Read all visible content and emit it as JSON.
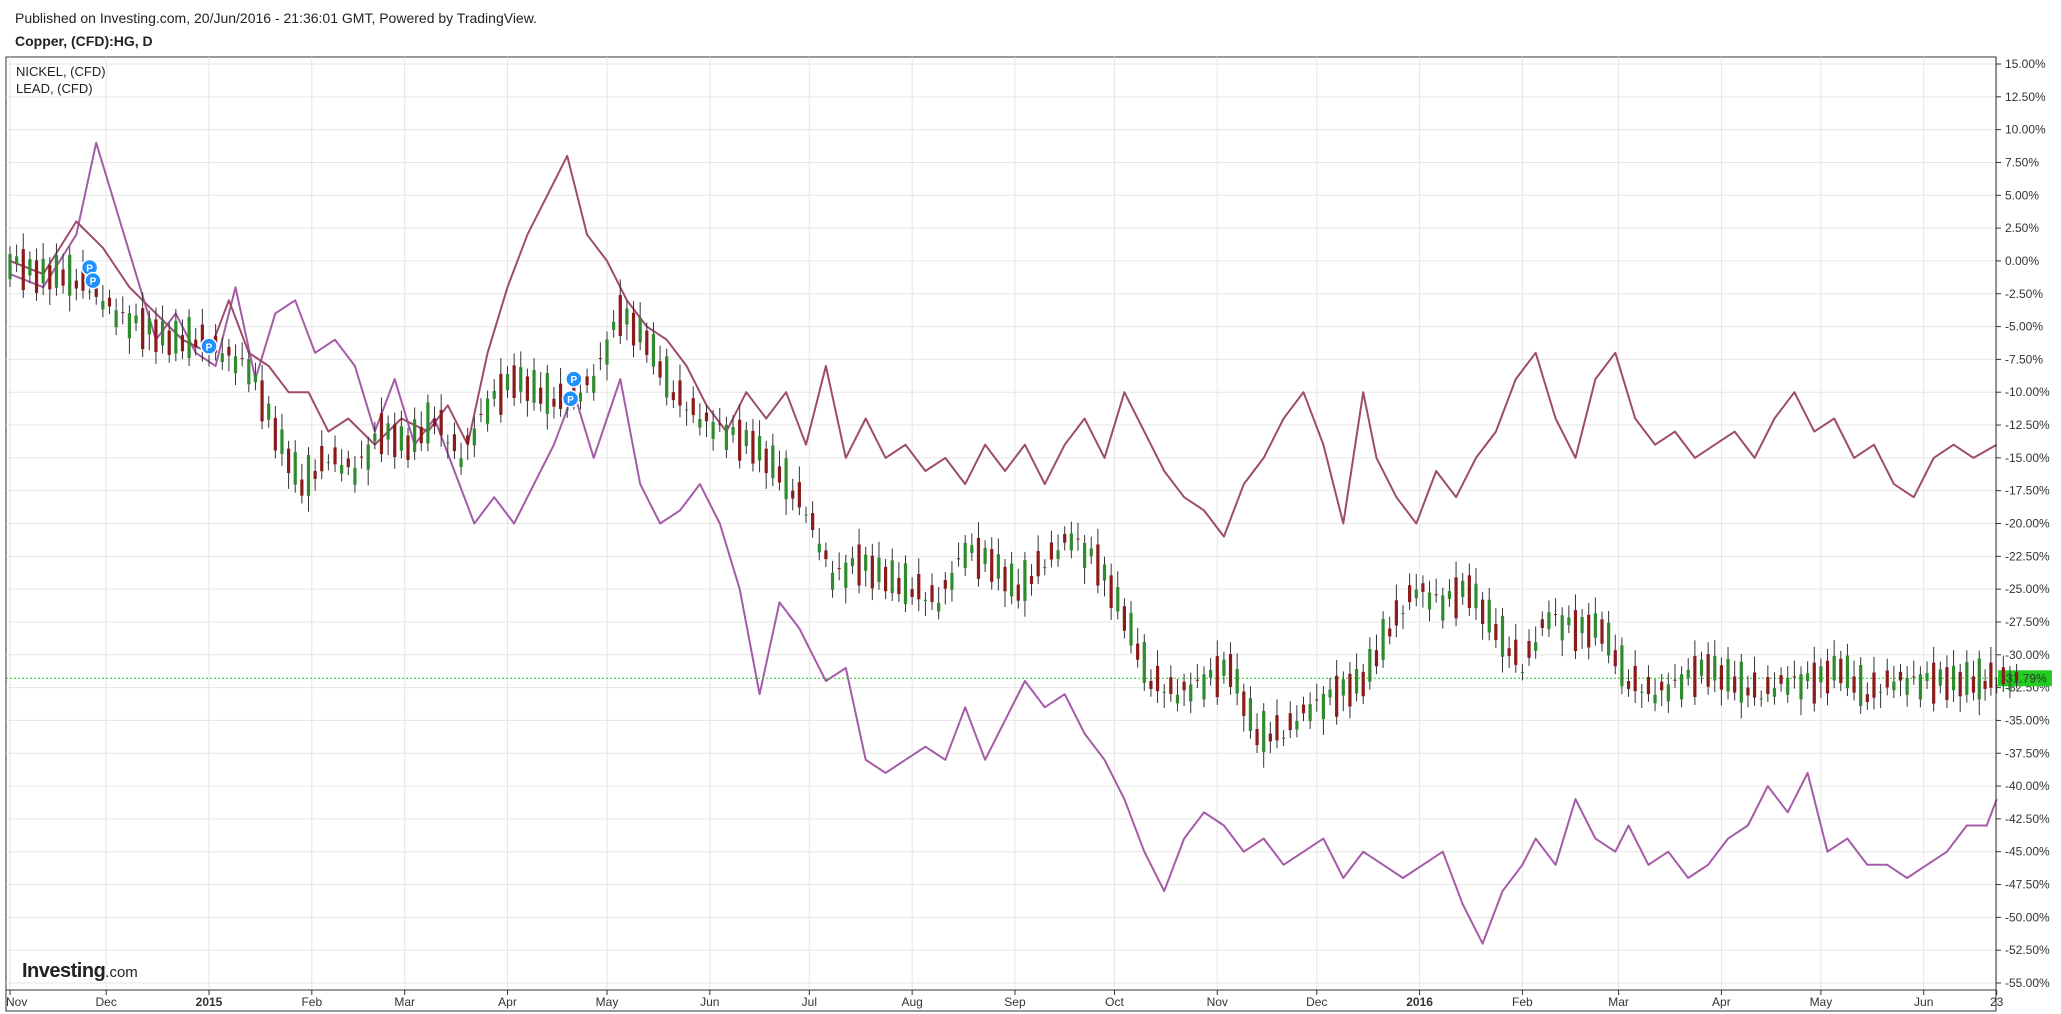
{
  "header": {
    "published": "Published on Investing.com, 20/Jun/2016 - 21:36:01 GMT, Powered by TradingView.",
    "symbol": "Copper, (CFD):HG, D"
  },
  "legend": [
    "NICKEL,  (CFD)",
    "LEAD,  (CFD)"
  ],
  "logo": {
    "brand": "Investing",
    "suffix": ".com"
  },
  "colors": {
    "nickel": "#a45ba8",
    "lead": "#9d4b6e",
    "up": "#2e8b2e",
    "down": "#8b1a1a",
    "last_line": "#22cc22",
    "last_badge": "#22cc22",
    "marker": "#1e90ff",
    "grid": "#e6e6e6"
  },
  "chart_data": {
    "type": "line",
    "y_unit": "percent",
    "ylim": [
      -55,
      15
    ],
    "y_ticks": [
      "15.00%",
      "12.50%",
      "10.00%",
      "7.50%",
      "5.00%",
      "2.50%",
      "0.00%",
      "-2.50%",
      "-5.00%",
      "-7.50%",
      "-10.00%",
      "-12.50%",
      "-15.00%",
      "-17.50%",
      "-20.00%",
      "-22.50%",
      "-25.00%",
      "-27.50%",
      "-30.00%",
      "-32.50%",
      "-35.00%",
      "-37.50%",
      "-40.00%",
      "-42.50%",
      "-45.00%",
      "-47.50%",
      "-50.00%",
      "-52.50%",
      "-55.00%"
    ],
    "x_ticks": [
      {
        "label": "Nov",
        "t": 0,
        "bold": false
      },
      {
        "label": "Dec",
        "t": 29,
        "bold": false
      },
      {
        "label": "2015",
        "t": 60,
        "bold": true
      },
      {
        "label": "Feb",
        "t": 91,
        "bold": false
      },
      {
        "label": "Mar",
        "t": 119,
        "bold": false
      },
      {
        "label": "Apr",
        "t": 150,
        "bold": false
      },
      {
        "label": "May",
        "t": 180,
        "bold": false
      },
      {
        "label": "Jun",
        "t": 211,
        "bold": false
      },
      {
        "label": "Jul",
        "t": 241,
        "bold": false
      },
      {
        "label": "Aug",
        "t": 272,
        "bold": false
      },
      {
        "label": "Sep",
        "t": 303,
        "bold": false
      },
      {
        "label": "Oct",
        "t": 333,
        "bold": false
      },
      {
        "label": "Nov",
        "t": 364,
        "bold": false
      },
      {
        "label": "Dec",
        "t": 394,
        "bold": false
      },
      {
        "label": "2016",
        "t": 425,
        "bold": true
      },
      {
        "label": "Feb",
        "t": 456,
        "bold": false
      },
      {
        "label": "Mar",
        "t": 485,
        "bold": false
      },
      {
        "label": "Apr",
        "t": 516,
        "bold": false
      },
      {
        "label": "May",
        "t": 546,
        "bold": false
      },
      {
        "label": "Jun",
        "t": 577,
        "bold": false
      },
      {
        "label": "23",
        "t": 599,
        "bold": false
      }
    ],
    "last_value": -31.79,
    "last_label": "-31.79%",
    "series": [
      {
        "name": "NICKEL,  (CFD)",
        "t": [
          0,
          10,
          20,
          26,
          32,
          38,
          44,
          50,
          56,
          62,
          68,
          74,
          80,
          86,
          92,
          98,
          104,
          110,
          116,
          122,
          128,
          134,
          140,
          146,
          152,
          158,
          164,
          170,
          176,
          180,
          184,
          190,
          196,
          202,
          208,
          214,
          220,
          226,
          232,
          238,
          242,
          246,
          252,
          258,
          264,
          270,
          276,
          282,
          288,
          294,
          300,
          306,
          312,
          318,
          324,
          330,
          336,
          342,
          348,
          354,
          360,
          366,
          372,
          378,
          384,
          390,
          396,
          402,
          408,
          414,
          420,
          426,
          432,
          438,
          444,
          450,
          456,
          460,
          466,
          472,
          478,
          484,
          488,
          494,
          500,
          506,
          512,
          518,
          524,
          530,
          536,
          542,
          548,
          554,
          560,
          566,
          572,
          578,
          584,
          590,
          596,
          599
        ],
        "values": [
          -1,
          -2,
          2,
          9,
          4,
          -1,
          -6,
          -4,
          -7,
          -8,
          -2,
          -9,
          -4,
          -3,
          -7,
          -6,
          -8,
          -13,
          -9,
          -14,
          -12,
          -16,
          -20,
          -18,
          -20,
          -17,
          -14,
          -10,
          -15,
          -12,
          -9,
          -17,
          -20,
          -19,
          -17,
          -20,
          -25,
          -33,
          -26,
          -28,
          -30,
          -32,
          -31,
          -38,
          -39,
          -38,
          -37,
          -38,
          -34,
          -38,
          -35,
          -32,
          -34,
          -33,
          -36,
          -38,
          -41,
          -45,
          -48,
          -44,
          -42,
          -43,
          -45,
          -44,
          -46,
          -45,
          -44,
          -47,
          -45,
          -46,
          -47,
          -46,
          -45,
          -49,
          -52,
          -48,
          -46,
          -44,
          -46,
          -41,
          -44,
          -45,
          -43,
          -46,
          -45,
          -47,
          -46,
          -44,
          -43,
          -40,
          -42,
          -39,
          -45,
          -44,
          -46,
          -46,
          -47,
          -46,
          -45,
          -43,
          -43,
          -41
        ]
      },
      {
        "name": "LEAD,  (CFD)",
        "t": [
          0,
          10,
          20,
          28,
          36,
          44,
          52,
          60,
          66,
          72,
          78,
          84,
          90,
          96,
          102,
          110,
          118,
          126,
          132,
          138,
          144,
          150,
          156,
          162,
          168,
          174,
          180,
          186,
          192,
          198,
          204,
          210,
          216,
          222,
          228,
          234,
          240,
          246,
          252,
          258,
          264,
          270,
          276,
          282,
          288,
          294,
          300,
          306,
          312,
          318,
          324,
          330,
          336,
          342,
          348,
          354,
          360,
          366,
          372,
          378,
          384,
          390,
          396,
          402,
          408,
          412,
          418,
          424,
          430,
          436,
          442,
          448,
          454,
          460,
          466,
          472,
          478,
          484,
          490,
          496,
          502,
          508,
          514,
          520,
          526,
          532,
          538,
          544,
          550,
          556,
          562,
          568,
          574,
          580,
          586,
          592,
          599
        ],
        "values": [
          0,
          -1,
          3,
          1,
          -2,
          -4,
          -6,
          -7,
          -3,
          -7,
          -8,
          -10,
          -10,
          -13,
          -12,
          -14,
          -12,
          -13,
          -11,
          -14,
          -7,
          -2,
          2,
          5,
          8,
          2,
          0,
          -3,
          -5,
          -6,
          -8,
          -11,
          -13,
          -10,
          -12,
          -10,
          -14,
          -8,
          -15,
          -12,
          -15,
          -14,
          -16,
          -15,
          -17,
          -14,
          -16,
          -14,
          -17,
          -14,
          -12,
          -15,
          -10,
          -13,
          -16,
          -18,
          -19,
          -21,
          -17,
          -15,
          -12,
          -10,
          -14,
          -20,
          -10,
          -15,
          -18,
          -20,
          -16,
          -18,
          -15,
          -13,
          -9,
          -7,
          -12,
          -15,
          -9,
          -7,
          -12,
          -14,
          -13,
          -15,
          -14,
          -13,
          -15,
          -12,
          -10,
          -13,
          -12,
          -15,
          -14,
          -17,
          -18,
          -15,
          -14,
          -15,
          -14
        ]
      },
      {
        "name": "Copper, (CFD):HG, D",
        "kind": "candlestick",
        "t": [
          0,
          8,
          16,
          24,
          32,
          40,
          48,
          56,
          64,
          72,
          80,
          88,
          96,
          104,
          112,
          120,
          128,
          136,
          144,
          152,
          160,
          168,
          176,
          184,
          192,
          200,
          208,
          216,
          224,
          232,
          240,
          248,
          256,
          264,
          272,
          280,
          288,
          296,
          304,
          312,
          320,
          328,
          336,
          344,
          352,
          360,
          368,
          376,
          384,
          392,
          400,
          408,
          416,
          424,
          432,
          440,
          448,
          456,
          464,
          472,
          480,
          488,
          496,
          504,
          512,
          520,
          528,
          536,
          544,
          552,
          560,
          568,
          576,
          584,
          592,
          599
        ],
        "values": [
          0,
          -1,
          -1,
          -2,
          -4,
          -5,
          -6,
          -6,
          -7,
          -8,
          -13,
          -17,
          -15,
          -16,
          -13,
          -14,
          -12,
          -15,
          -11,
          -9,
          -10,
          -11,
          -9,
          -4,
          -6,
          -10,
          -12,
          -13,
          -14,
          -16,
          -19,
          -24,
          -23,
          -24,
          -25,
          -26,
          -22,
          -23,
          -25,
          -23,
          -21,
          -23,
          -27,
          -32,
          -33,
          -32,
          -31,
          -36,
          -36,
          -34,
          -33,
          -32,
          -28,
          -25,
          -26,
          -25,
          -28,
          -31,
          -27,
          -28,
          -28,
          -32,
          -33,
          -32,
          -31,
          -32,
          -33,
          -32,
          -32,
          -31,
          -33,
          -32,
          -32,
          -32,
          -32,
          -32
        ]
      }
    ],
    "markers": [
      {
        "label": "P",
        "t": 24,
        "value": -0.5
      },
      {
        "label": "P",
        "t": 25,
        "value": -1.5
      },
      {
        "label": "P",
        "t": 60,
        "value": -6.5
      },
      {
        "label": "P",
        "t": 170,
        "value": -9
      },
      {
        "label": "P",
        "t": 169,
        "value": -10.5
      }
    ]
  }
}
